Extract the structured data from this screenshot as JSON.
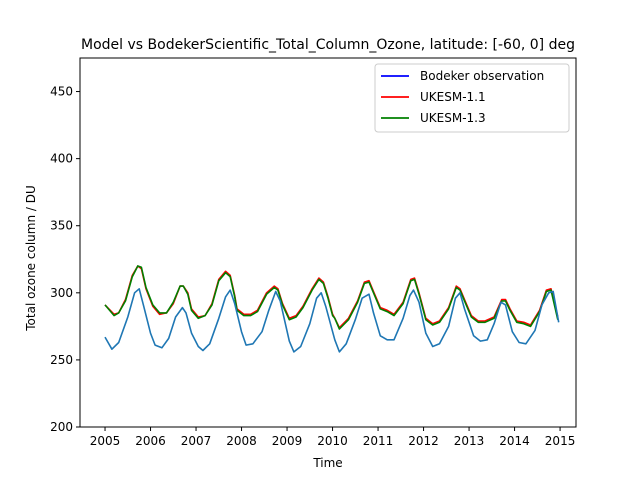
{
  "chart_data": {
    "type": "line",
    "title": "Model vs BodekerScientific_Total_Column_Ozone, latitude: [-60, 0] deg",
    "xlabel": "Time",
    "ylabel": "Total ozone column / DU",
    "xlim": [
      2004.45,
      2015.35
    ],
    "ylim": [
      200,
      475
    ],
    "x_ticks": [
      2005,
      2006,
      2007,
      2008,
      2009,
      2010,
      2011,
      2012,
      2013,
      2014,
      2015
    ],
    "x_tick_labels": [
      "2005",
      "2006",
      "2007",
      "2008",
      "2009",
      "2010",
      "2011",
      "2012",
      "2013",
      "2014",
      "2015"
    ],
    "y_ticks": [
      200,
      250,
      300,
      350,
      400,
      450
    ],
    "y_tick_labels": [
      "200",
      "250",
      "300",
      "350",
      "400",
      "450"
    ],
    "grid": false,
    "legend": {
      "placement": "top-right",
      "entries": [
        {
          "label": "Bodeker observation",
          "color": "#0000ff"
        },
        {
          "label": "UKESM-1.1",
          "color": "#ff0000"
        },
        {
          "label": "UKESM-1.3",
          "color": "#008000"
        }
      ]
    },
    "series": [
      {
        "name": "UKESM-1.1",
        "color": "#ff0000",
        "x": [
          2005.0,
          2005.2,
          2005.3,
          2005.45,
          2005.6,
          2005.72,
          2005.8,
          2005.9,
          2006.05,
          2006.2,
          2006.35,
          2006.5,
          2006.65,
          2006.72,
          2006.82,
          2006.9,
          2007.05,
          2007.2,
          2007.35,
          2007.5,
          2007.65,
          2007.75,
          2007.85,
          2007.9,
          2008.05,
          2008.2,
          2008.35,
          2008.55,
          2008.72,
          2008.8,
          2008.9,
          2009.05,
          2009.2,
          2009.35,
          2009.55,
          2009.7,
          2009.8,
          2009.9,
          2010.0,
          2010.05,
          2010.15,
          2010.35,
          2010.55,
          2010.7,
          2010.8,
          2010.9,
          2011.05,
          2011.2,
          2011.35,
          2011.55,
          2011.72,
          2011.8,
          2011.9,
          2012.05,
          2012.2,
          2012.35,
          2012.55,
          2012.72,
          2012.8,
          2012.9,
          2013.05,
          2013.2,
          2013.35,
          2013.55,
          2013.72,
          2013.8,
          2013.9,
          2014.05,
          2014.2,
          2014.35,
          2014.55,
          2014.7,
          2014.8,
          2014.95
        ],
        "y": [
          291,
          284,
          285,
          295,
          313,
          320,
          318,
          303,
          290,
          284,
          285,
          292,
          305,
          305,
          300,
          288,
          282,
          283,
          292,
          310,
          316,
          313,
          298,
          288,
          284,
          284,
          287,
          300,
          305,
          303,
          292,
          281,
          283,
          290,
          303,
          311,
          308,
          297,
          284,
          281,
          274,
          281,
          294,
          308,
          309,
          301,
          289,
          287,
          284,
          293,
          310,
          311,
          300,
          281,
          277,
          279,
          289,
          305,
          303,
          295,
          283,
          279,
          279,
          282,
          295,
          295,
          288,
          279,
          278,
          276,
          287,
          302,
          303,
          282
        ]
      },
      {
        "name": "UKESM-1.3",
        "color": "#008000",
        "x": [
          2005.0,
          2005.2,
          2005.3,
          2005.45,
          2005.6,
          2005.72,
          2005.8,
          2005.9,
          2006.05,
          2006.2,
          2006.35,
          2006.5,
          2006.65,
          2006.72,
          2006.82,
          2006.9,
          2007.05,
          2007.2,
          2007.35,
          2007.5,
          2007.65,
          2007.75,
          2007.85,
          2007.9,
          2008.05,
          2008.2,
          2008.35,
          2008.55,
          2008.72,
          2008.8,
          2008.9,
          2009.05,
          2009.2,
          2009.35,
          2009.55,
          2009.7,
          2009.8,
          2009.9,
          2010.0,
          2010.05,
          2010.15,
          2010.35,
          2010.55,
          2010.7,
          2010.8,
          2010.9,
          2011.05,
          2011.2,
          2011.35,
          2011.55,
          2011.72,
          2011.8,
          2011.9,
          2012.05,
          2012.2,
          2012.35,
          2012.55,
          2012.72,
          2012.8,
          2012.9,
          2013.05,
          2013.2,
          2013.35,
          2013.55,
          2013.72,
          2013.8,
          2013.9,
          2014.05,
          2014.2,
          2014.35,
          2014.55,
          2014.7,
          2014.8,
          2014.95
        ],
        "y": [
          291,
          283,
          285,
          294,
          312,
          320,
          319,
          304,
          291,
          285,
          285,
          293,
          305,
          305,
          299,
          287,
          281,
          283,
          291,
          309,
          315,
          312,
          297,
          287,
          283,
          283,
          286,
          299,
          304,
          302,
          291,
          280,
          282,
          289,
          302,
          310,
          307,
          296,
          283,
          281,
          273,
          280,
          293,
          307,
          308,
          300,
          288,
          286,
          283,
          292,
          309,
          310,
          299,
          280,
          276,
          278,
          288,
          304,
          302,
          294,
          282,
          278,
          278,
          281,
          294,
          294,
          287,
          278,
          277,
          275,
          286,
          301,
          302,
          280
        ]
      },
      {
        "name": "Bodeker observation",
        "color": "#1f77b4",
        "x": [
          2005.0,
          2005.15,
          2005.3,
          2005.5,
          2005.65,
          2005.75,
          2005.85,
          2006.0,
          2006.1,
          2006.25,
          2006.4,
          2006.55,
          2006.7,
          2006.78,
          2006.9,
          2007.05,
          2007.15,
          2007.3,
          2007.5,
          2007.65,
          2007.75,
          2007.85,
          2008.0,
          2008.1,
          2008.25,
          2008.45,
          2008.6,
          2008.75,
          2008.85,
          2009.05,
          2009.15,
          2009.3,
          2009.5,
          2009.65,
          2009.75,
          2009.85,
          2010.05,
          2010.15,
          2010.3,
          2010.5,
          2010.65,
          2010.8,
          2010.9,
          2011.05,
          2011.2,
          2011.35,
          2011.55,
          2011.7,
          2011.78,
          2011.9,
          2012.05,
          2012.2,
          2012.35,
          2012.55,
          2012.7,
          2012.8,
          2012.9,
          2013.1,
          2013.25,
          2013.4,
          2013.55,
          2013.7,
          2013.8,
          2013.95,
          2014.1,
          2014.25,
          2014.45,
          2014.6,
          2014.75,
          2014.85,
          2014.97
        ],
        "y": [
          267,
          258,
          263,
          282,
          300,
          303,
          290,
          270,
          261,
          259,
          266,
          282,
          289,
          285,
          270,
          260,
          257,
          262,
          281,
          297,
          302,
          292,
          271,
          261,
          262,
          271,
          287,
          301,
          294,
          264,
          256,
          260,
          277,
          296,
          300,
          290,
          265,
          256,
          262,
          280,
          296,
          299,
          285,
          268,
          265,
          265,
          281,
          298,
          302,
          293,
          270,
          260,
          262,
          275,
          296,
          300,
          288,
          268,
          264,
          265,
          277,
          293,
          291,
          271,
          263,
          262,
          272,
          291,
          300,
          301,
          278
        ]
      }
    ]
  }
}
